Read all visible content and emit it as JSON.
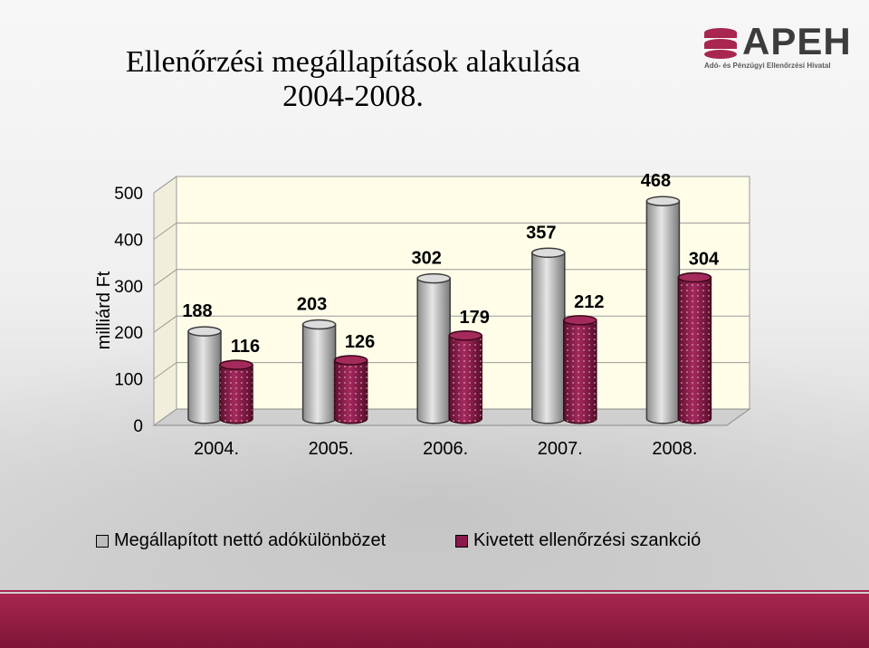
{
  "title_line1": "Ellenőrzési megállapítások alakulása",
  "title_line2": "2004-2008.",
  "logo": {
    "name": "APEH",
    "subtitle": "Adó- és Pénzügyi Ellenőrzési Hivatal"
  },
  "colors": {
    "series1": "#bdbdbd",
    "series2": "#8b1a4a",
    "footer": "#8e1b42"
  },
  "chart_data": {
    "type": "bar",
    "title": "Ellenőrzési megállapítások alakulása 2004-2008.",
    "ylabel": "milliárd Ft",
    "xlabel": "",
    "ylim": [
      0,
      500
    ],
    "yticks": [
      "0",
      "100",
      "200",
      "300",
      "400",
      "500"
    ],
    "categories": [
      "2004.",
      "2005.",
      "2006.",
      "2007.",
      "2008."
    ],
    "series": [
      {
        "name": "Megállapított nettó adókülönbözet",
        "values": [
          188,
          203,
          302,
          357,
          468
        ],
        "labels": [
          "188",
          "203",
          "302",
          "357",
          "468"
        ]
      },
      {
        "name": "Kivetett ellenőrzési szankció",
        "values": [
          116,
          126,
          179,
          212,
          304
        ],
        "labels": [
          "116",
          "126",
          "179",
          "212",
          "304"
        ]
      }
    ],
    "legend_position": "bottom",
    "grid": true
  }
}
